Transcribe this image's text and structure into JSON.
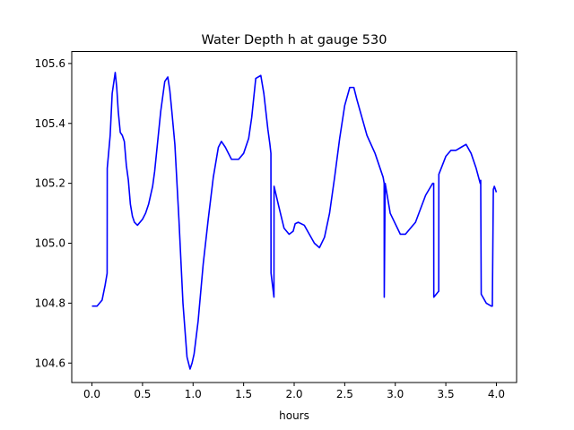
{
  "chart_data": {
    "type": "line",
    "title": "Water Depth h at gauge 530",
    "xlabel": "hours",
    "ylabel": "",
    "xlim": [
      -0.2,
      4.2
    ],
    "ylim": [
      104.535,
      105.64
    ],
    "xticks": [
      0.0,
      0.5,
      1.0,
      1.5,
      2.0,
      2.5,
      3.0,
      3.5,
      4.0
    ],
    "xtick_labels": [
      "0.0",
      "0.5",
      "1.0",
      "1.5",
      "2.0",
      "2.5",
      "3.0",
      "3.5",
      "4.0"
    ],
    "yticks": [
      104.6,
      104.8,
      105.0,
      105.2,
      105.4,
      105.6
    ],
    "ytick_labels": [
      "104.6",
      "104.8",
      "105.0",
      "105.2",
      "105.4",
      "105.6"
    ],
    "grid": false,
    "series": [
      {
        "color": "#0000ff",
        "x": [
          0.0,
          0.05,
          0.1,
          0.13,
          0.15,
          0.151,
          0.18,
          0.2,
          0.23,
          0.245,
          0.26,
          0.28,
          0.3,
          0.32,
          0.34,
          0.36,
          0.38,
          0.4,
          0.42,
          0.45,
          0.5,
          0.53,
          0.56,
          0.6,
          0.62,
          0.65,
          0.68,
          0.72,
          0.75,
          0.77,
          0.79,
          0.82,
          0.86,
          0.9,
          0.94,
          0.97,
          0.99,
          1.01,
          1.05,
          1.1,
          1.15,
          1.2,
          1.25,
          1.28,
          1.32,
          1.38,
          1.45,
          1.5,
          1.55,
          1.58,
          1.62,
          1.67,
          1.7,
          1.74,
          1.76,
          1.77,
          1.771,
          1.8,
          1.801,
          1.85,
          1.9,
          1.95,
          1.99,
          2.01,
          2.04,
          2.1,
          2.15,
          2.2,
          2.25,
          2.3,
          2.35,
          2.4,
          2.45,
          2.5,
          2.55,
          2.59,
          2.62,
          2.67,
          2.72,
          2.8,
          2.88,
          2.89,
          2.891,
          2.9,
          2.95,
          3.05,
          3.1,
          3.2,
          3.3,
          3.37,
          3.38,
          3.381,
          3.43,
          3.431,
          3.5,
          3.55,
          3.6,
          3.65,
          3.7,
          3.75,
          3.8,
          3.84,
          3.845,
          3.85,
          3.9,
          3.95,
          3.96,
          3.97,
          3.98,
          4.0
        ],
        "y": [
          104.79,
          104.79,
          104.81,
          104.86,
          104.9,
          105.25,
          105.36,
          105.5,
          105.57,
          105.52,
          105.44,
          105.37,
          105.36,
          105.34,
          105.26,
          105.21,
          105.13,
          105.09,
          105.07,
          105.06,
          105.08,
          105.1,
          105.13,
          105.19,
          105.24,
          105.34,
          105.44,
          105.54,
          105.555,
          105.51,
          105.44,
          105.33,
          105.08,
          104.8,
          104.62,
          104.58,
          104.6,
          104.63,
          104.74,
          104.93,
          105.08,
          105.22,
          105.32,
          105.34,
          105.32,
          105.28,
          105.28,
          105.3,
          105.35,
          105.42,
          105.55,
          105.56,
          105.5,
          105.38,
          105.33,
          105.3,
          104.9,
          104.82,
          105.19,
          105.12,
          105.05,
          105.03,
          105.04,
          105.065,
          105.07,
          105.06,
          105.03,
          105.0,
          104.985,
          105.02,
          105.1,
          105.22,
          105.35,
          105.46,
          105.52,
          105.52,
          105.48,
          105.42,
          105.36,
          105.3,
          105.22,
          105.2,
          104.82,
          105.2,
          105.1,
          105.03,
          105.03,
          105.07,
          105.16,
          105.2,
          105.2,
          104.82,
          104.84,
          105.23,
          105.29,
          105.31,
          105.31,
          105.32,
          105.33,
          105.3,
          105.25,
          105.2,
          105.21,
          104.83,
          104.8,
          104.79,
          104.79,
          105.18,
          105.19,
          105.17
        ]
      }
    ]
  }
}
